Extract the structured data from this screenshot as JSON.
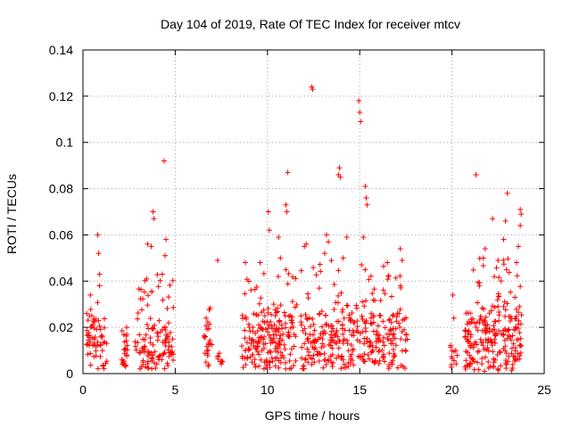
{
  "chart_data": {
    "type": "scatter",
    "title": "Day 104 of 2019, Rate Of TEC Index for receiver mtcv",
    "xlabel": "GPS time / hours",
    "ylabel": "ROTI / TECUs",
    "xlim": [
      0,
      25
    ],
    "ylim": [
      0,
      0.14
    ],
    "x_ticks": [
      0,
      5,
      10,
      15,
      20,
      25
    ],
    "y_ticks": [
      0,
      0.02,
      0.04,
      0.06,
      0.08,
      0.1,
      0.12,
      0.14
    ],
    "x_tick_labels": [
      "0",
      "5",
      "10",
      "15",
      "20",
      "25"
    ],
    "y_tick_labels": [
      "0",
      "0.02",
      "0.04",
      "0.06",
      "0.08",
      "0.1",
      "0.12",
      "0.14"
    ],
    "grid": true,
    "marker": "+",
    "series_color": "#ff0000",
    "clusters": [
      {
        "x": [
          0.2,
          1.3
        ],
        "base": [
          0.002,
          0.02
        ],
        "peak": 0.035,
        "density": 60
      },
      {
        "x": [
          2.1,
          2.4
        ],
        "base": [
          0.003,
          0.015
        ],
        "peak": 0.02,
        "density": 25
      },
      {
        "x": [
          2.8,
          4.9
        ],
        "base": [
          0.002,
          0.02
        ],
        "peak": 0.043,
        "density": 120
      },
      {
        "x": [
          6.5,
          7.0
        ],
        "base": [
          0.003,
          0.02
        ],
        "peak": 0.03,
        "density": 25
      },
      {
        "x": [
          7.3,
          7.6
        ],
        "base": [
          0.003,
          0.012
        ],
        "peak": 0.015,
        "density": 8
      },
      {
        "x": [
          8.6,
          11.6
        ],
        "base": [
          0.002,
          0.025
        ],
        "peak": 0.045,
        "density": 200
      },
      {
        "x": [
          11.8,
          17.6
        ],
        "base": [
          0.002,
          0.025
        ],
        "peak": 0.05,
        "density": 340
      },
      {
        "x": [
          19.9,
          20.3
        ],
        "base": [
          0.002,
          0.01
        ],
        "peak": 0.015,
        "density": 12
      },
      {
        "x": [
          20.7,
          23.8
        ],
        "base": [
          0.001,
          0.025
        ],
        "peak": 0.05,
        "density": 230
      }
    ],
    "points": [
      [
        0.4,
        0.034
      ],
      [
        0.35,
        0.025
      ],
      [
        0.8,
        0.06
      ],
      [
        0.85,
        0.052
      ],
      [
        0.9,
        0.043
      ],
      [
        0.9,
        0.038
      ],
      [
        3.5,
        0.056
      ],
      [
        3.7,
        0.055
      ],
      [
        3.8,
        0.07
      ],
      [
        3.85,
        0.067
      ],
      [
        4.4,
        0.092
      ],
      [
        4.5,
        0.058
      ],
      [
        4.45,
        0.051
      ],
      [
        4.3,
        0.043
      ],
      [
        7.3,
        0.049
      ],
      [
        8.8,
        0.048
      ],
      [
        9.6,
        0.048
      ],
      [
        10.05,
        0.07
      ],
      [
        10.1,
        0.062
      ],
      [
        10.6,
        0.059
      ],
      [
        10.7,
        0.05
      ],
      [
        11.0,
        0.073
      ],
      [
        11.05,
        0.07
      ],
      [
        11.1,
        0.087
      ],
      [
        11.0,
        0.045
      ],
      [
        12.4,
        0.124
      ],
      [
        12.45,
        0.123
      ],
      [
        12.1,
        0.056
      ],
      [
        12.0,
        0.055
      ],
      [
        13.2,
        0.06
      ],
      [
        13.3,
        0.057
      ],
      [
        13.1,
        0.052
      ],
      [
        13.9,
        0.089
      ],
      [
        13.95,
        0.085
      ],
      [
        13.85,
        0.086
      ],
      [
        14.3,
        0.059
      ],
      [
        14.1,
        0.05
      ],
      [
        14.95,
        0.118
      ],
      [
        15.0,
        0.113
      ],
      [
        15.05,
        0.109
      ],
      [
        15.3,
        0.081
      ],
      [
        15.35,
        0.076
      ],
      [
        15.4,
        0.073
      ],
      [
        15.2,
        0.059
      ],
      [
        15.1,
        0.047
      ],
      [
        16.5,
        0.048
      ],
      [
        17.2,
        0.054
      ],
      [
        17.3,
        0.049
      ],
      [
        20.05,
        0.034
      ],
      [
        20.1,
        0.024
      ],
      [
        21.3,
        0.086
      ],
      [
        21.8,
        0.054
      ],
      [
        21.7,
        0.05
      ],
      [
        22.2,
        0.067
      ],
      [
        22.5,
        0.049
      ],
      [
        22.9,
        0.066
      ],
      [
        23.0,
        0.078
      ],
      [
        22.8,
        0.058
      ],
      [
        23.7,
        0.071
      ],
      [
        23.75,
        0.069
      ],
      [
        23.7,
        0.064
      ],
      [
        23.6,
        0.055
      ],
      [
        23.5,
        0.048
      ]
    ]
  }
}
